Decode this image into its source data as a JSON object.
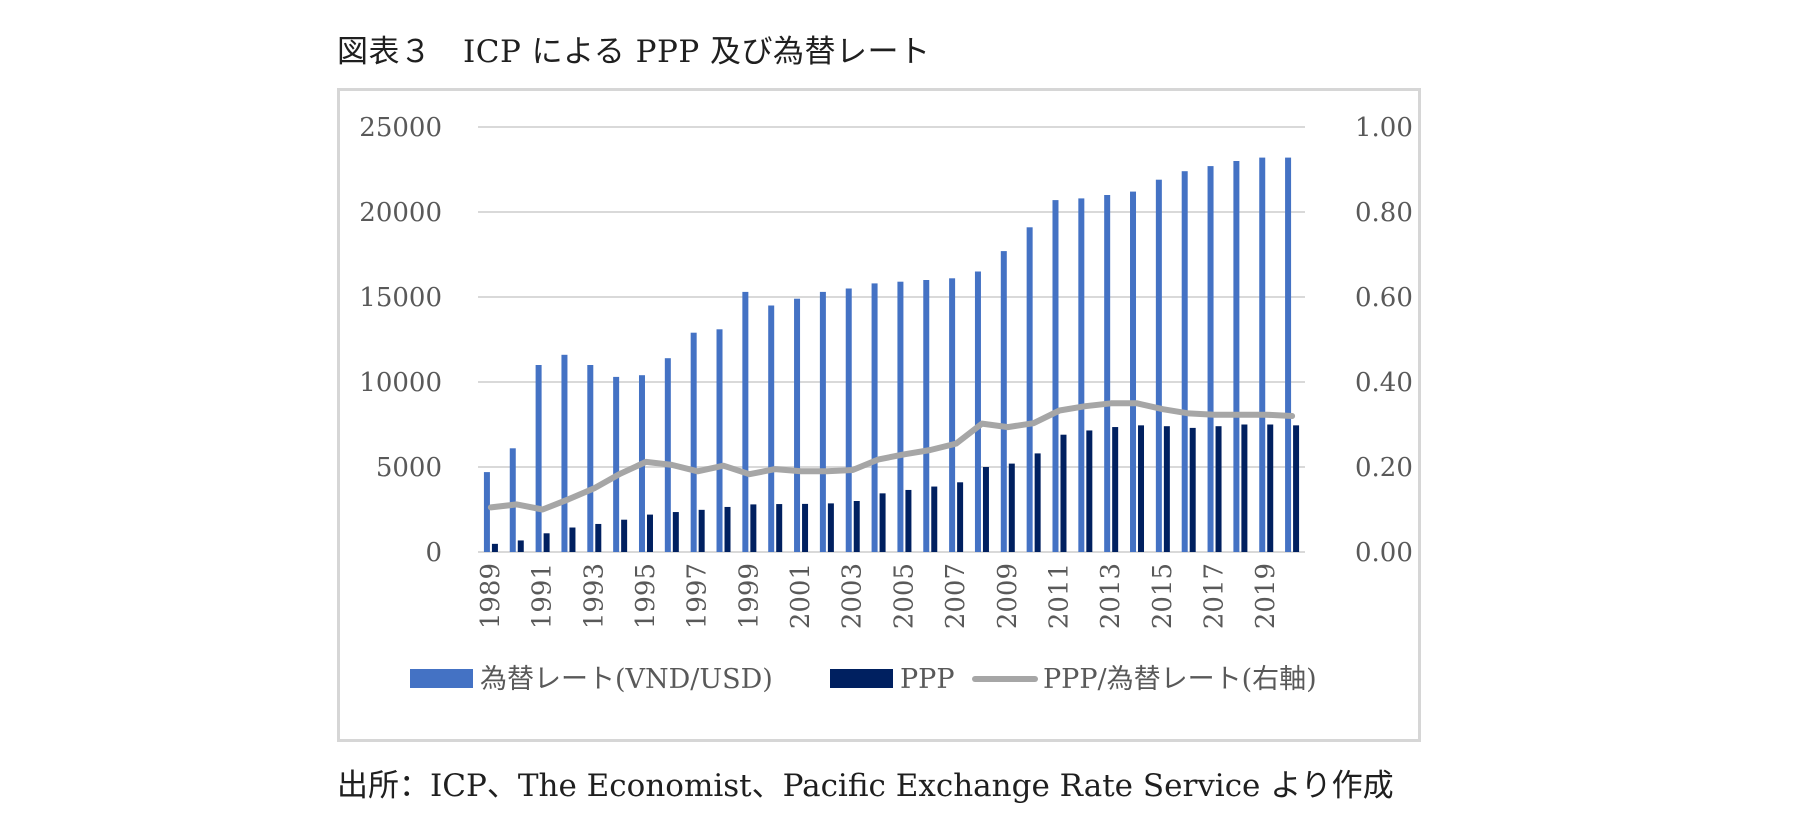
{
  "title": "図表３　ICP による PPP 及び為替レート",
  "source": "出所：ICP、The Economist、Pacific Exchange Rate Service より作成",
  "colors": {
    "rate": "#4472c4",
    "ppp": "#002060",
    "ratio": "#a6a6a6",
    "grid": "#d9d9d9"
  },
  "chart_data": {
    "type": "bar",
    "title": "",
    "x": [
      1989,
      1990,
      1991,
      1992,
      1993,
      1994,
      1995,
      1996,
      1997,
      1998,
      1999,
      2000,
      2001,
      2002,
      2003,
      2004,
      2005,
      2006,
      2007,
      2008,
      2009,
      2010,
      2011,
      2012,
      2013,
      2014,
      2015,
      2016,
      2017,
      2018,
      2019,
      2020
    ],
    "x_tick_labels": [
      "1989",
      "1991",
      "1993",
      "1995",
      "1997",
      "1999",
      "2001",
      "2003",
      "2005",
      "2007",
      "2009",
      "2011",
      "2013",
      "2015",
      "2017",
      "2019"
    ],
    "ylim_left": [
      0,
      25000
    ],
    "y_ticks_left": [
      "0",
      "5000",
      "10000",
      "15000",
      "20000",
      "25000"
    ],
    "ylim_right": [
      0,
      1.0
    ],
    "y_ticks_right": [
      "0.00",
      "0.20",
      "0.40",
      "0.60",
      "0.80",
      "1.00"
    ],
    "grid": true,
    "legend_position": "bottom",
    "series": [
      {
        "name": "為替レート(VND/USD)",
        "type": "bar",
        "axis": "left",
        "values": [
          4700,
          6100,
          11000,
          11600,
          11000,
          10300,
          10400,
          11400,
          12900,
          13100,
          15300,
          14500,
          14900,
          15300,
          15500,
          15800,
          15900,
          16000,
          16100,
          16500,
          17700,
          19100,
          20700,
          20800,
          21000,
          21200,
          21900,
          22400,
          22700,
          23000,
          23200,
          23200
        ]
      },
      {
        "name": "PPP",
        "type": "bar",
        "axis": "left",
        "values": [
          480,
          680,
          1100,
          1440,
          1650,
          1900,
          2200,
          2350,
          2480,
          2650,
          2800,
          2820,
          2830,
          2860,
          3000,
          3450,
          3650,
          3850,
          4100,
          5000,
          5200,
          5800,
          6900,
          7150,
          7350,
          7450,
          7400,
          7300,
          7400,
          7500,
          7500,
          7450
        ]
      },
      {
        "name": "PPP/為替レート(右軸)",
        "type": "line",
        "axis": "right",
        "values": [
          0.105,
          0.112,
          0.1,
          0.124,
          0.15,
          0.184,
          0.212,
          0.205,
          0.19,
          0.203,
          0.183,
          0.195,
          0.19,
          0.19,
          0.193,
          0.218,
          0.23,
          0.24,
          0.255,
          0.302,
          0.294,
          0.303,
          0.333,
          0.343,
          0.35,
          0.35,
          0.336,
          0.326,
          0.323,
          0.323,
          0.323,
          0.32
        ]
      }
    ]
  }
}
